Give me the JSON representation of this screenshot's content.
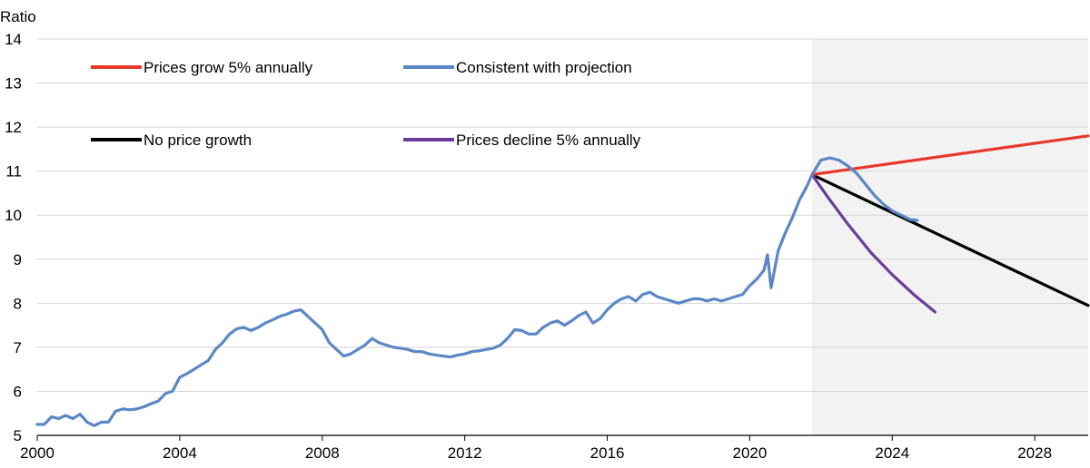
{
  "chart_data": {
    "type": "line",
    "ylabel": "Ratio",
    "xlim": [
      2000,
      2029.5
    ],
    "ylim": [
      5,
      14
    ],
    "x_ticks": [
      2000,
      2004,
      2008,
      2012,
      2016,
      2020,
      2024,
      2028
    ],
    "x_tick_labels": [
      "2000",
      "2004",
      "2008",
      "2012",
      "2016",
      "2020",
      "2024",
      "2028"
    ],
    "y_ticks": [
      5,
      6,
      7,
      8,
      9,
      10,
      11,
      12,
      13,
      14
    ],
    "y_tick_labels": [
      "5",
      "6",
      "7",
      "8",
      "9",
      "10",
      "11",
      "12",
      "13",
      "14"
    ],
    "grid": "horizontal",
    "projection_shading": {
      "from": 2021.75,
      "to": 2029.5,
      "color": "#f2f2f2"
    },
    "legend": {
      "placement": "top-left",
      "columns": 2
    },
    "series": [
      {
        "name": "Prices grow 5% annually",
        "color": "#e8382b",
        "x": [
          2021.75,
          2029.5
        ],
        "y": [
          10.92,
          11.8
        ]
      },
      {
        "name": "Consistent with projection",
        "color": "#5b87c5",
        "x": [
          2000.0,
          2000.2,
          2000.4,
          2000.6,
          2000.8,
          2001.0,
          2001.2,
          2001.4,
          2001.6,
          2001.8,
          2002.0,
          2002.2,
          2002.4,
          2002.6,
          2002.8,
          2003.0,
          2003.2,
          2003.4,
          2003.6,
          2003.8,
          2004.0,
          2004.2,
          2004.4,
          2004.6,
          2004.8,
          2005.0,
          2005.2,
          2005.4,
          2005.6,
          2005.8,
          2006.0,
          2006.2,
          2006.4,
          2006.6,
          2006.8,
          2007.0,
          2007.2,
          2007.4,
          2007.6,
          2007.8,
          2008.0,
          2008.2,
          2008.4,
          2008.6,
          2008.8,
          2009.0,
          2009.2,
          2009.4,
          2009.6,
          2009.8,
          2010.0,
          2010.2,
          2010.4,
          2010.6,
          2010.8,
          2011.0,
          2011.2,
          2011.4,
          2011.6,
          2011.8,
          2012.0,
          2012.2,
          2012.4,
          2012.6,
          2012.8,
          2013.0,
          2013.2,
          2013.4,
          2013.6,
          2013.8,
          2014.0,
          2014.2,
          2014.4,
          2014.6,
          2014.8,
          2015.0,
          2015.2,
          2015.4,
          2015.6,
          2015.8,
          2016.0,
          2016.2,
          2016.4,
          2016.6,
          2016.8,
          2017.0,
          2017.2,
          2017.4,
          2017.6,
          2017.8,
          2018.0,
          2018.2,
          2018.4,
          2018.6,
          2018.8,
          2019.0,
          2019.2,
          2019.4,
          2019.6,
          2019.8,
          2020.0,
          2020.2,
          2020.4,
          2020.5,
          2020.6,
          2020.8,
          2021.0,
          2021.2,
          2021.4,
          2021.6,
          2021.75,
          2022.0,
          2022.25,
          2022.5,
          2022.75,
          2023.0,
          2023.25,
          2023.5,
          2023.75,
          2024.0,
          2024.25,
          2024.5,
          2024.7
        ],
        "y": [
          5.25,
          5.25,
          5.42,
          5.38,
          5.45,
          5.38,
          5.48,
          5.3,
          5.22,
          5.3,
          5.3,
          5.55,
          5.6,
          5.58,
          5.6,
          5.65,
          5.72,
          5.78,
          5.95,
          6.0,
          6.32,
          6.4,
          6.5,
          6.6,
          6.7,
          6.95,
          7.1,
          7.3,
          7.42,
          7.45,
          7.38,
          7.45,
          7.55,
          7.62,
          7.7,
          7.75,
          7.82,
          7.85,
          7.7,
          7.55,
          7.4,
          7.1,
          6.95,
          6.8,
          6.85,
          6.95,
          7.05,
          7.2,
          7.1,
          7.05,
          7.0,
          6.98,
          6.95,
          6.9,
          6.9,
          6.85,
          6.82,
          6.8,
          6.78,
          6.82,
          6.85,
          6.9,
          6.92,
          6.95,
          6.98,
          7.05,
          7.2,
          7.4,
          7.38,
          7.3,
          7.3,
          7.45,
          7.55,
          7.6,
          7.5,
          7.6,
          7.72,
          7.8,
          7.55,
          7.65,
          7.85,
          8.0,
          8.1,
          8.15,
          8.05,
          8.2,
          8.25,
          8.15,
          8.1,
          8.05,
          8.0,
          8.05,
          8.1,
          8.1,
          8.05,
          8.1,
          8.05,
          8.1,
          8.15,
          8.2,
          8.4,
          8.55,
          8.75,
          9.1,
          8.35,
          9.2,
          9.6,
          9.95,
          10.35,
          10.65,
          10.92,
          11.25,
          11.3,
          11.25,
          11.12,
          10.95,
          10.7,
          10.45,
          10.25,
          10.1,
          10.0,
          9.9,
          9.88
        ]
      },
      {
        "name": "No price growth",
        "color": "#000000",
        "x": [
          2021.75,
          2029.5
        ],
        "y": [
          10.92,
          7.95
        ]
      },
      {
        "name": "Prices decline 5% annually",
        "color": "#6a3d9a",
        "x": [
          2021.75,
          2022.2,
          2022.75,
          2023.4,
          2024.0,
          2024.6,
          2025.2
        ],
        "y": [
          10.92,
          10.4,
          9.8,
          9.15,
          8.65,
          8.2,
          7.8
        ]
      }
    ]
  }
}
